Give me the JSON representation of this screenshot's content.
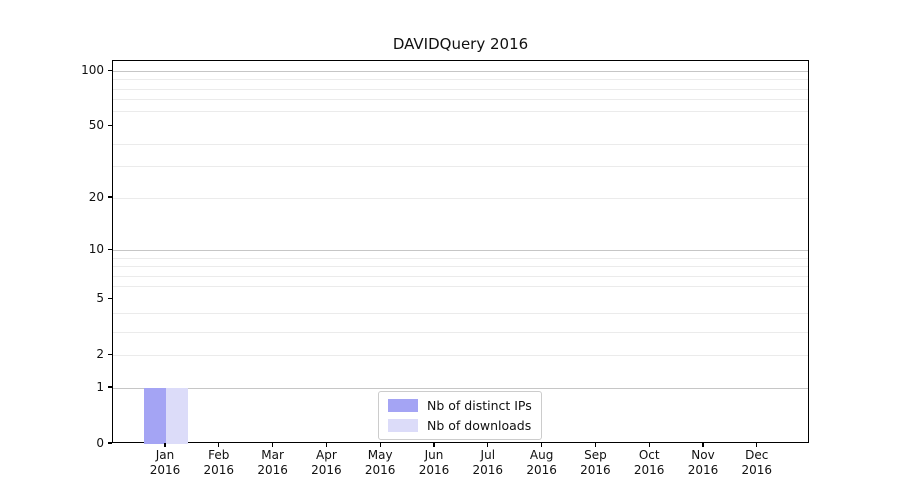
{
  "chart_data": {
    "type": "bar",
    "title": "DAVIDQuery 2016",
    "xlabel": "",
    "ylabel": "",
    "yscale": "log10(1+x)",
    "ylim": [
      0,
      113
    ],
    "grid": "horizontal",
    "legend_position": "lower center",
    "categories": [
      {
        "month": "Jan",
        "year": "2016"
      },
      {
        "month": "Feb",
        "year": "2016"
      },
      {
        "month": "Mar",
        "year": "2016"
      },
      {
        "month": "Apr",
        "year": "2016"
      },
      {
        "month": "May",
        "year": "2016"
      },
      {
        "month": "Jun",
        "year": "2016"
      },
      {
        "month": "Jul",
        "year": "2016"
      },
      {
        "month": "Aug",
        "year": "2016"
      },
      {
        "month": "Sep",
        "year": "2016"
      },
      {
        "month": "Oct",
        "year": "2016"
      },
      {
        "month": "Nov",
        "year": "2016"
      },
      {
        "month": "Dec",
        "year": "2016"
      }
    ],
    "series": [
      {
        "name": "Nb of distinct IPs",
        "color": "#a4a4f4",
        "values": [
          1,
          0,
          0,
          0,
          0,
          0,
          0,
          0,
          0,
          0,
          0,
          0
        ]
      },
      {
        "name": "Nb of downloads",
        "color": "#dcdcf9",
        "values": [
          1,
          0,
          0,
          0,
          0,
          0,
          0,
          0,
          0,
          0,
          0,
          0
        ]
      }
    ],
    "yticks": [
      0,
      1,
      2,
      5,
      10,
      20,
      50,
      100
    ],
    "grid_major_values": [
      1,
      10,
      100
    ],
    "grid_minor_values": [
      2,
      3,
      4,
      6,
      7,
      8,
      9,
      20,
      30,
      40,
      60,
      70,
      80,
      90
    ],
    "colors": {
      "grid_major": "#c6c6c6",
      "grid_minor": "#ebebeb",
      "spine": "#000000",
      "text": "#111111",
      "legend_border": "#cccccc"
    }
  }
}
